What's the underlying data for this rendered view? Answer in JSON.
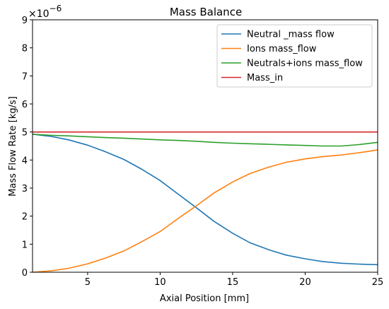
{
  "chart_data": {
    "type": "line",
    "title": "Mass Balance",
    "xlabel": "Axial Position [mm]",
    "ylabel": "Mass Flow Rate [kg/s]",
    "y_offset_label": "×10",
    "y_offset_exponent": "−6",
    "xlim": [
      1.2,
      25
    ],
    "ylim": [
      0,
      9
    ],
    "xticks": [
      5,
      10,
      15,
      20,
      25
    ],
    "yticks": [
      0,
      1,
      2,
      3,
      4,
      5,
      6,
      7,
      8,
      9
    ],
    "grid": false,
    "legend_position": "top-right",
    "series": [
      {
        "name": "Neutral _mass flow",
        "color": "#1f77b4",
        "x": [
          1.2,
          2.5,
          3.7,
          5.0,
          6.2,
          7.5,
          8.7,
          10.0,
          11.2,
          12.5,
          13.7,
          15.0,
          16.2,
          17.5,
          18.7,
          20.0,
          21.2,
          22.5,
          23.7,
          25.0
        ],
        "y": [
          4.92,
          4.84,
          4.72,
          4.53,
          4.3,
          4.02,
          3.68,
          3.27,
          2.8,
          2.3,
          1.82,
          1.39,
          1.05,
          0.8,
          0.61,
          0.48,
          0.38,
          0.32,
          0.29,
          0.27
        ]
      },
      {
        "name": "Ions mass_flow",
        "color": "#ff7f0e",
        "x": [
          1.2,
          2.5,
          3.7,
          5.0,
          6.2,
          7.5,
          8.7,
          10.0,
          11.2,
          12.5,
          13.7,
          15.0,
          16.2,
          17.5,
          18.7,
          20.0,
          21.2,
          22.5,
          23.7,
          25.0
        ],
        "y": [
          0.0,
          0.05,
          0.14,
          0.3,
          0.5,
          0.76,
          1.08,
          1.45,
          1.9,
          2.37,
          2.82,
          3.22,
          3.52,
          3.75,
          3.92,
          4.04,
          4.12,
          4.18,
          4.26,
          4.36
        ]
      },
      {
        "name": "Neutrals+ions mass_flow",
        "color": "#2ca02c",
        "x": [
          1.2,
          2.5,
          3.7,
          5.0,
          6.2,
          7.5,
          8.7,
          10.0,
          11.2,
          12.5,
          13.7,
          15.0,
          16.2,
          17.5,
          18.7,
          20.0,
          21.2,
          22.5,
          23.7,
          25.0
        ],
        "y": [
          4.92,
          4.88,
          4.86,
          4.83,
          4.8,
          4.78,
          4.75,
          4.72,
          4.7,
          4.67,
          4.63,
          4.6,
          4.58,
          4.56,
          4.54,
          4.52,
          4.5,
          4.5,
          4.55,
          4.63
        ]
      },
      {
        "name": "Mass_in",
        "color": "#d62728",
        "x": [
          1.2,
          25.0
        ],
        "y": [
          5.0,
          5.0
        ]
      }
    ]
  }
}
